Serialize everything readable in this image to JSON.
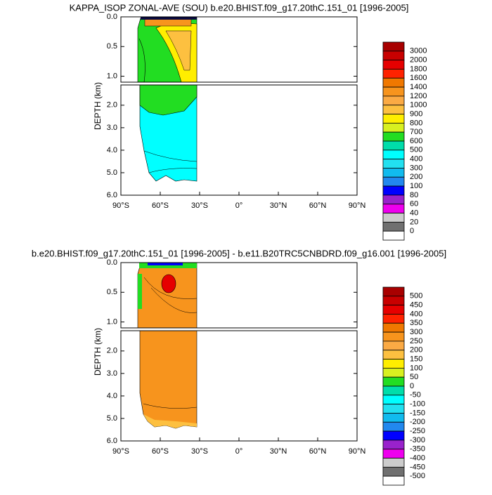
{
  "chart_data": [
    {
      "type": "contour",
      "title": "KAPPA_ISOP ZONAL-AVE (SOU) b.e20.BHIST.f09_g17.20thC.151_01 [1996-2005]",
      "ylabel": "DEPTH (km)",
      "xlim": [
        -90,
        90
      ],
      "xticks": [
        {
          "value": -90,
          "label": "90°S"
        },
        {
          "value": -60,
          "label": "60°S"
        },
        {
          "value": -30,
          "label": "30°S"
        },
        {
          "value": 0,
          "label": "0°"
        },
        {
          "value": 30,
          "label": "30°N"
        },
        {
          "value": 60,
          "label": "60°N"
        },
        {
          "value": 90,
          "label": "90°N"
        }
      ],
      "panels": [
        {
          "ylim": [
            0,
            1.1
          ],
          "yticks": [
            {
              "value": 0,
              "label": "0.0"
            },
            0.5,
            {
              "value": 1,
              "label": "1.0"
            }
          ]
        },
        {
          "ylim": [
            1.1,
            6
          ],
          "yticks": [
            {
              "value": 2,
              "label": "2.0"
            },
            {
              "value": 3,
              "label": "3.0"
            },
            {
              "value": 4,
              "label": "4.0"
            },
            {
              "value": 5,
              "label": "5.0"
            },
            {
              "value": 6,
              "label": "6.0"
            }
          ]
        }
      ],
      "levels": [
        3000,
        2000,
        1800,
        1600,
        1400,
        1200,
        1000,
        900,
        800,
        700,
        600,
        500,
        400,
        300,
        200,
        100,
        80,
        60,
        40,
        20,
        0
      ],
      "colors": [
        "#a80000",
        "#c80000",
        "#e60000",
        "#ff2200",
        "#f07800",
        "#f7941d",
        "#fbaa44",
        "#fdc040",
        "#ffee00",
        "#d8f020",
        "#22dd22",
        "#00ddaa",
        "#00ffff",
        "#22e0f0",
        "#11bbee",
        "#2288ee",
        "#0000ff",
        "#9922cc",
        "#ee00ee",
        "#cccccc",
        "#707070",
        "#ffffff"
      ]
    },
    {
      "type": "contour",
      "title": "b.e20.BHIST.f09_g17.20thC.151_01 [1996-2005] - b.e11.B20TRC5CNBDRD.f09_g16.001 [1996-2005]",
      "ylabel": "DEPTH (km)",
      "xlim": [
        -90,
        90
      ],
      "xticks": [
        {
          "value": -90,
          "label": "90°S"
        },
        {
          "value": -60,
          "label": "60°S"
        },
        {
          "value": -30,
          "label": "30°S"
        },
        {
          "value": 0,
          "label": "0°"
        },
        {
          "value": 30,
          "label": "30°N"
        },
        {
          "value": 60,
          "label": "60°N"
        },
        {
          "value": 90,
          "label": "90°N"
        }
      ],
      "panels": [
        {
          "ylim": [
            0,
            1.1
          ],
          "yticks": [
            {
              "value": 0,
              "label": "0.0"
            },
            0.5,
            {
              "value": 1,
              "label": "1.0"
            }
          ]
        },
        {
          "ylim": [
            1.1,
            6
          ],
          "yticks": [
            {
              "value": 2,
              "label": "2.0"
            },
            {
              "value": 3,
              "label": "3.0"
            },
            {
              "value": 4,
              "label": "4.0"
            },
            {
              "value": 5,
              "label": "5.0"
            },
            {
              "value": 6,
              "label": "6.0"
            }
          ]
        }
      ],
      "levels": [
        500,
        450,
        400,
        350,
        300,
        250,
        200,
        150,
        100,
        50,
        0,
        -50,
        -100,
        -150,
        -200,
        -250,
        -300,
        -350,
        -400,
        -450,
        -500
      ],
      "colors": [
        "#a80000",
        "#c80000",
        "#e60000",
        "#ff2200",
        "#f07800",
        "#f7941d",
        "#fbaa44",
        "#fdc040",
        "#ffee00",
        "#d8f020",
        "#22dd22",
        "#00ddaa",
        "#00ffff",
        "#22e0f0",
        "#11bbee",
        "#2288ee",
        "#0000ff",
        "#9922cc",
        "#ee00ee",
        "#cccccc",
        "#707070",
        "#ffffff"
      ]
    }
  ]
}
